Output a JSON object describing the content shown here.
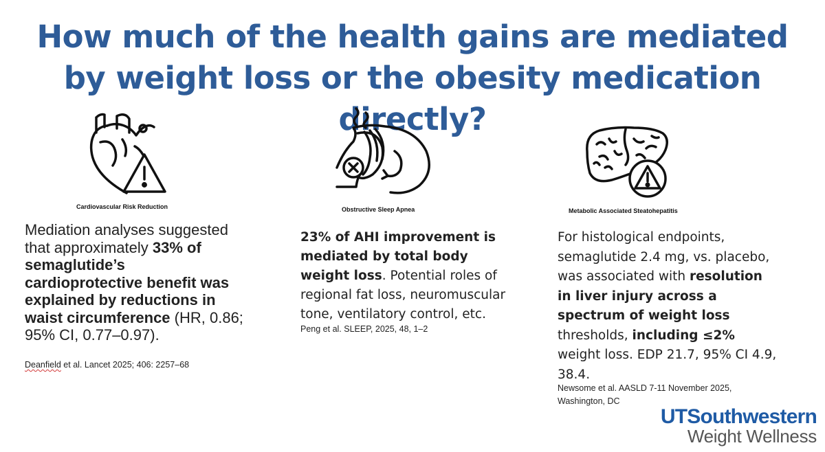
{
  "title": "How much of the health gains are mediated by weight loss or the obesity medication directly?",
  "columns": [
    {
      "icon": "heart-warning-icon",
      "caption": "Cardiovascular Risk Reduction",
      "body": {
        "t1": "Mediation analyses suggested that approximately ",
        "b1": "33% of semaglutide’s cardioprotective benefit was explained by reductions in waist circumference",
        "t2": " (HR, 0.86; 95% CI, 0.77–0.97)."
      },
      "citation": {
        "author": "Deanfield",
        "rest": " et al. Lancet 2025; 406: 2257–68"
      }
    },
    {
      "icon": "sleep-apnea-head-icon",
      "caption": "Obstructive Sleep Apnea",
      "body": {
        "b1": "23% of AHI improvement is mediated by total body weight loss",
        "t1": ". Potential roles of regional fat loss, neuromuscular tone, ventilatory control, etc."
      },
      "citation": "Peng et al. SLEEP, 2025, 48, 1–2"
    },
    {
      "icon": "liver-warning-icon",
      "caption": "Metabolic Associated Steatohepatitis",
      "body": {
        "t1": "For histological endpoints, semaglutide 2.4 mg, vs. placebo, was associated with ",
        "b1": "resolution in liver injury across a spectrum of weight loss",
        "t2": " thresholds, ",
        "b2": "including ≤2%",
        "t3": " weight loss. EDP 21.7, 95% CI 4.9, 38.4."
      },
      "citation": "Newsome et al. AASLD 7-11 November 2025, Washington, DC"
    }
  ],
  "logo": {
    "line1": "UTSouthwestern",
    "line2": "Weight Wellness"
  },
  "colors": {
    "title": "#2e5c98",
    "logo_blue": "#1f5ba5",
    "logo_gray": "#555555"
  }
}
